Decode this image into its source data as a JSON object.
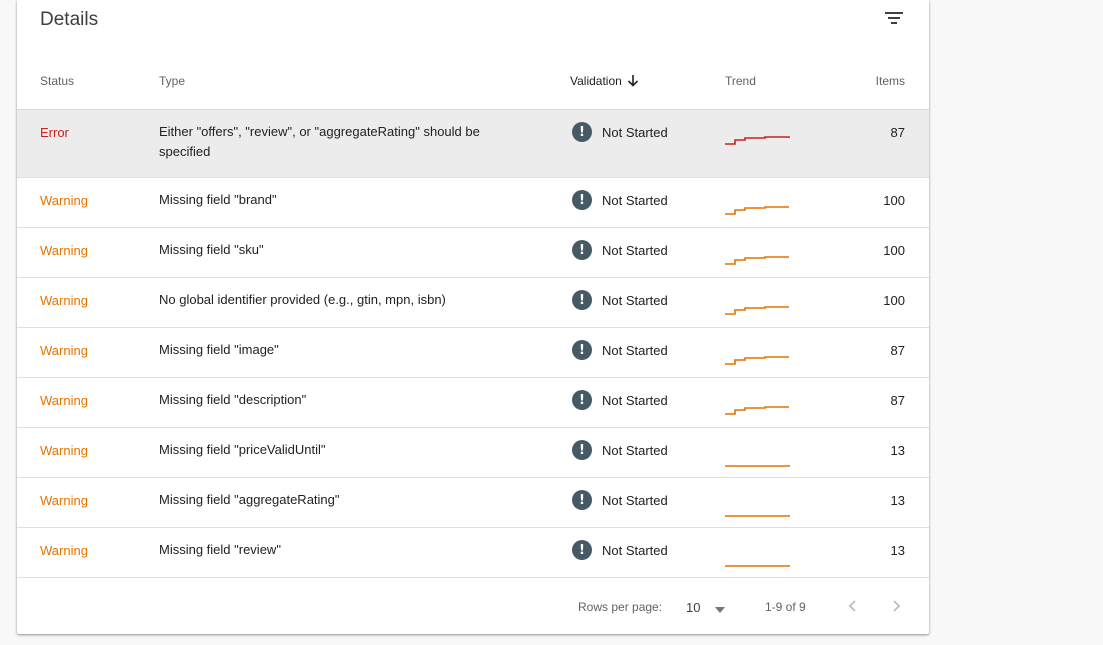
{
  "card": {
    "title": "Details"
  },
  "icons": {
    "filter": "filter-icon",
    "sort": "arrow-down-icon",
    "validation": "exclamation-icon",
    "caret": "caret-down-icon",
    "prev": "chevron-left-icon",
    "next": "chevron-right-icon"
  },
  "colors": {
    "error": "#c5221f",
    "warning": "#e37400",
    "selected_row": "#ececec",
    "validation_icon": "#455a64"
  },
  "table": {
    "headers": {
      "status": "Status",
      "type": "Type",
      "validation": "Validation",
      "trend": "Trend",
      "items": "Items"
    },
    "rows": [
      {
        "status": "Error",
        "type": "Either \"offers\", \"review\", or \"aggregateRating\" should be specified",
        "validation": "Not Started",
        "items": "87"
      },
      {
        "status": "Warning",
        "type": "Missing field \"brand\"",
        "validation": "Not Started",
        "items": "100"
      },
      {
        "status": "Warning",
        "type": "Missing field \"sku\"",
        "validation": "Not Started",
        "items": "100"
      },
      {
        "status": "Warning",
        "type": "No global identifier provided (e.g., gtin, mpn, isbn)",
        "validation": "Not Started",
        "items": "100"
      },
      {
        "status": "Warning",
        "type": "Missing field \"image\"",
        "validation": "Not Started",
        "items": "87"
      },
      {
        "status": "Warning",
        "type": "Missing field \"description\"",
        "validation": "Not Started",
        "items": "87"
      },
      {
        "status": "Warning",
        "type": "Missing field \"priceValidUntil\"",
        "validation": "Not Started",
        "items": "13"
      },
      {
        "status": "Warning",
        "type": "Missing field \"aggregateRating\"",
        "validation": "Not Started",
        "items": "13"
      },
      {
        "status": "Warning",
        "type": "Missing field \"review\"",
        "validation": "Not Started",
        "items": "13"
      }
    ]
  },
  "footer": {
    "rows_per_page_label": "Rows per page:",
    "rows_per_page_value": "10",
    "range": "1-9 of 9"
  }
}
